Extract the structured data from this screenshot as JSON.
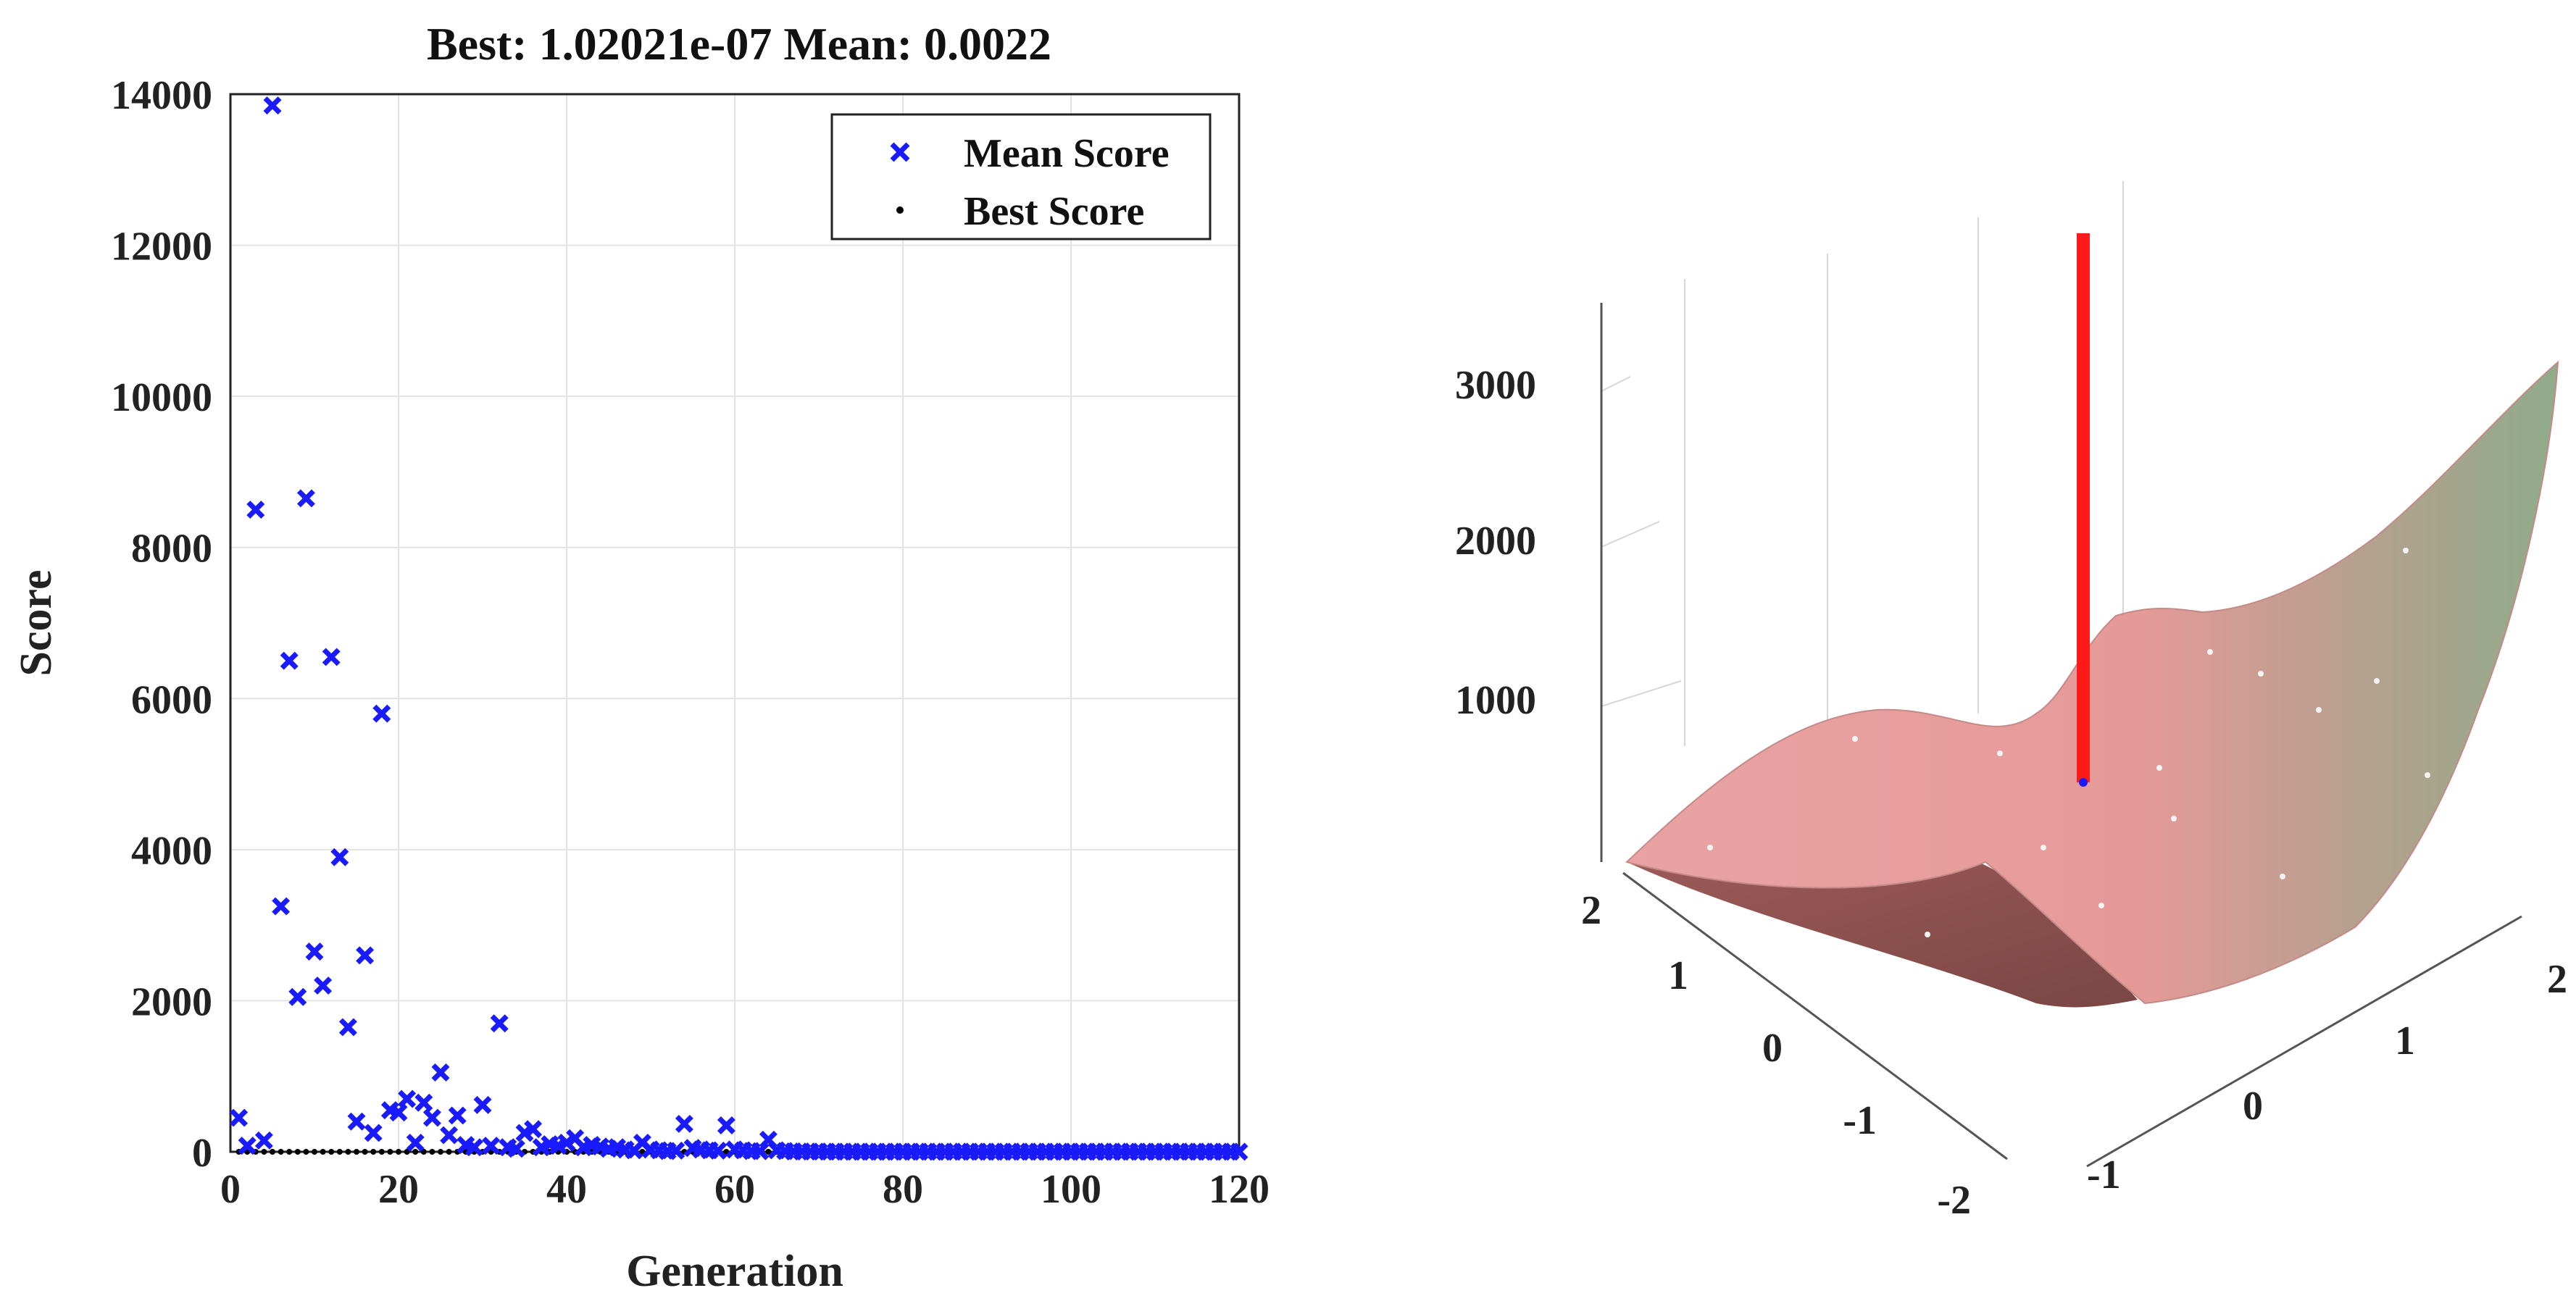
{
  "chart_data": [
    {
      "type": "scatter",
      "title": "Best: 1.02021e-07 Mean: 0.0022",
      "xlabel": "Generation",
      "ylabel": "Score",
      "xlim": [
        0,
        120
      ],
      "ylim": [
        0,
        14000
      ],
      "xticks": [
        "0",
        "20",
        "40",
        "60",
        "80",
        "100",
        "120"
      ],
      "yticks": [
        "0",
        "2000",
        "4000",
        "6000",
        "8000",
        "10000",
        "12000",
        "14000"
      ],
      "grid": true,
      "legend_position": "top-right",
      "series": [
        {
          "name": "Mean Score",
          "marker": "x",
          "color": "#1a1aff",
          "points": [
            [
              1,
              450
            ],
            [
              2,
              80
            ],
            [
              3,
              8500
            ],
            [
              4,
              150
            ],
            [
              5,
              13850
            ],
            [
              6,
              3250
            ],
            [
              7,
              6500
            ],
            [
              8,
              2050
            ],
            [
              9,
              8650
            ],
            [
              10,
              2650
            ],
            [
              11,
              2200
            ],
            [
              12,
              6550
            ],
            [
              13,
              3900
            ],
            [
              14,
              1650
            ],
            [
              15,
              400
            ],
            [
              16,
              2600
            ],
            [
              17,
              250
            ],
            [
              18,
              5800
            ],
            [
              19,
              550
            ],
            [
              20,
              520
            ],
            [
              21,
              700
            ],
            [
              22,
              120
            ],
            [
              23,
              650
            ],
            [
              24,
              450
            ],
            [
              25,
              1050
            ],
            [
              26,
              220
            ],
            [
              27,
              480
            ],
            [
              28,
              90
            ],
            [
              29,
              60
            ],
            [
              30,
              620
            ],
            [
              31,
              80
            ],
            [
              32,
              1700
            ],
            [
              33,
              60
            ],
            [
              34,
              40
            ],
            [
              35,
              250
            ],
            [
              36,
              300
            ],
            [
              37,
              60
            ],
            [
              38,
              100
            ],
            [
              39,
              80
            ],
            [
              40,
              120
            ],
            [
              41,
              180
            ],
            [
              42,
              60
            ],
            [
              43,
              90
            ],
            [
              44,
              70
            ],
            [
              45,
              40
            ],
            [
              46,
              60
            ],
            [
              47,
              30
            ],
            [
              48,
              20
            ],
            [
              49,
              120
            ],
            [
              50,
              30
            ],
            [
              51,
              20
            ],
            [
              52,
              10
            ],
            [
              53,
              15
            ],
            [
              54,
              370
            ],
            [
              55,
              50
            ],
            [
              56,
              30
            ],
            [
              57,
              20
            ],
            [
              58,
              15
            ],
            [
              59,
              350
            ],
            [
              60,
              30
            ],
            [
              61,
              20
            ],
            [
              62,
              10
            ],
            [
              63,
              8
            ],
            [
              64,
              160
            ],
            [
              65,
              20
            ],
            [
              66,
              10
            ],
            [
              67,
              5
            ],
            [
              68,
              4
            ],
            [
              69,
              3
            ],
            [
              70,
              3
            ],
            [
              71,
              2
            ],
            [
              72,
              2
            ],
            [
              73,
              2
            ],
            [
              74,
              1
            ],
            [
              75,
              1
            ],
            [
              76,
              1
            ],
            [
              77,
              1
            ],
            [
              78,
              1
            ],
            [
              79,
              1
            ],
            [
              80,
              1
            ],
            [
              81,
              1
            ],
            [
              82,
              1
            ],
            [
              83,
              1
            ],
            [
              84,
              1
            ],
            [
              85,
              1
            ],
            [
              86,
              1
            ],
            [
              87,
              1
            ],
            [
              88,
              1
            ],
            [
              89,
              1
            ],
            [
              90,
              1
            ],
            [
              91,
              1
            ],
            [
              92,
              1
            ],
            [
              93,
              1
            ],
            [
              94,
              1
            ],
            [
              95,
              1
            ],
            [
              96,
              1
            ],
            [
              97,
              1
            ],
            [
              98,
              1
            ],
            [
              99,
              1
            ],
            [
              100,
              1
            ],
            [
              101,
              1
            ],
            [
              102,
              1
            ],
            [
              103,
              1
            ],
            [
              104,
              1
            ],
            [
              105,
              1
            ],
            [
              106,
              1
            ],
            [
              107,
              1
            ],
            [
              108,
              1
            ],
            [
              109,
              1
            ],
            [
              110,
              1
            ],
            [
              111,
              1
            ],
            [
              112,
              1
            ],
            [
              113,
              1
            ],
            [
              114,
              1
            ],
            [
              115,
              1
            ],
            [
              116,
              1
            ],
            [
              117,
              1
            ],
            [
              118,
              1
            ],
            [
              119,
              1
            ],
            [
              120,
              1
            ]
          ]
        },
        {
          "name": "Best Score",
          "marker": ".",
          "color": "#000000",
          "points": "near 0 at every generation 1–120"
        }
      ]
    },
    {
      "type": "surface",
      "x_ticks": [
        "-1",
        "0",
        "1",
        "2"
      ],
      "y_ticks": [
        "-2",
        "-1",
        "0",
        "1",
        "2"
      ],
      "z_ticks": [
        "1000",
        "2000",
        "3000"
      ],
      "colors": {
        "low": "#e8a0a0",
        "high": "#8fac8a",
        "shadow": "#8a4a48",
        "marker_line": "#ff1a1a"
      },
      "grid": true
    }
  ]
}
